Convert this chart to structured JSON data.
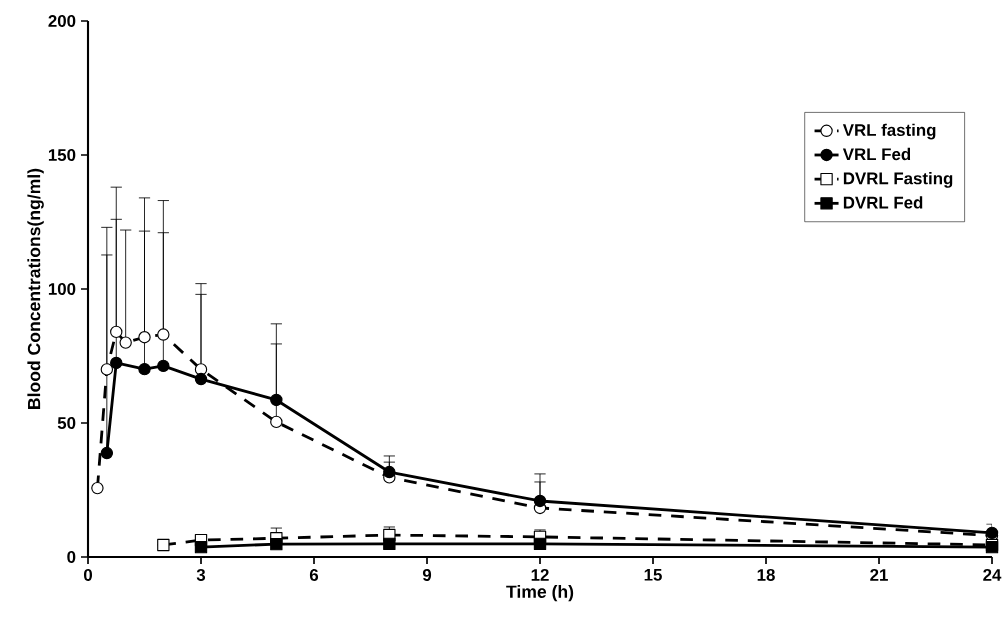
{
  "chart_data": {
    "type": "line",
    "xlabel": "Time (h)",
    "ylabel": "Blood Concentrations(ng/ml)",
    "xlim": [
      0,
      24
    ],
    "xticks": [
      0,
      3,
      6,
      9,
      12,
      15,
      18,
      21,
      24
    ],
    "ylim": [
      0,
      200
    ],
    "yticks": [
      0,
      50,
      100,
      150,
      200
    ],
    "legend": "top right",
    "grid": false,
    "series": [
      {
        "name": "VRL fasting",
        "color": "#000000",
        "marker": "circle",
        "line_style": "dashed",
        "x": [
          0.25,
          0.5,
          0.75,
          1,
          1.5,
          2,
          3,
          5,
          8,
          12,
          24
        ],
        "values": [
          25.7,
          70,
          84,
          80,
          82,
          83,
          70,
          50.4,
          29.7,
          18.3,
          8
        ],
        "errors": [
          null,
          [
            70,
            123
          ],
          [
            84,
            138
          ],
          [
            80,
            122
          ],
          [
            82,
            134
          ],
          [
            83,
            133
          ],
          [
            70,
            102
          ],
          [
            50.4,
            87
          ],
          [
            29.7,
            37.7
          ],
          [
            18.3,
            31
          ],
          null
        ]
      },
      {
        "name": "VRL Fed",
        "color": "#000000",
        "marker": "circle",
        "line_style": "solid",
        "x": [
          0.5,
          0.75,
          1.5,
          2,
          3,
          5,
          8,
          12,
          24
        ],
        "values": [
          38.8,
          72.4,
          70.1,
          71.3,
          66.4,
          58.6,
          31.7,
          20.9,
          9
        ],
        "errors": [
          [
            38.8,
            112.7
          ],
          [
            72.4,
            126
          ],
          [
            70.1,
            121.6
          ],
          [
            71.3,
            121
          ],
          [
            66.4,
            98
          ],
          [
            58.6,
            79.5
          ],
          [
            31.7,
            35.4
          ],
          [
            20.9,
            28
          ],
          [
            9,
            12.3
          ]
        ]
      },
      {
        "name": "DVRL Fasting",
        "color": "#000000",
        "marker": "square",
        "line_style": "dashed",
        "x": [
          2,
          3,
          5,
          8,
          12,
          24
        ],
        "values": [
          4.5,
          6.3,
          7,
          8.2,
          7.5,
          4.5
        ],
        "errors": [
          null,
          [
            6.3,
            7.5
          ],
          [
            7,
            10.8
          ],
          [
            8.2,
            11.2
          ],
          [
            7.5,
            10.1
          ],
          null
        ]
      },
      {
        "name": "DVRL Fed",
        "color": "#000000",
        "marker": "square",
        "line_style": "solid",
        "x": [
          3,
          5,
          8,
          12,
          24
        ],
        "values": [
          3.7,
          4.8,
          4.9,
          4.9,
          3.7
        ]
      }
    ]
  }
}
